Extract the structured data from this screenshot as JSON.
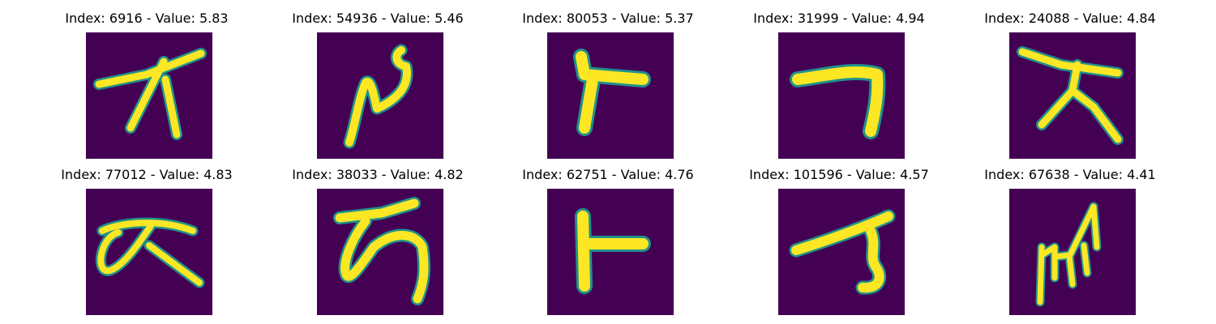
{
  "figure": {
    "panels": [
      {
        "title": "Index: 6916 - Value: 5.83",
        "glyph": "g1"
      },
      {
        "title": "Index: 54936 - Value: 5.46",
        "glyph": "g2"
      },
      {
        "title": "Index: 80053 - Value: 5.37",
        "glyph": "g3"
      },
      {
        "title": "Index: 31999 - Value: 4.94",
        "glyph": "g4"
      },
      {
        "title": "Index: 24088 - Value: 4.84",
        "glyph": "g5"
      },
      {
        "title": "Index: 77012 - Value: 4.83",
        "glyph": "g6"
      },
      {
        "title": "Index: 38033 - Value: 4.82",
        "glyph": "g7"
      },
      {
        "title": "Index: 62751 - Value: 4.76",
        "glyph": "g8"
      },
      {
        "title": "Index: 101596 - Value: 4.57",
        "glyph": "g9"
      },
      {
        "title": "Index: 67638 - Value: 4.41",
        "glyph": "g10"
      }
    ],
    "colors": {
      "background": "#440154",
      "stroke": "#fde725",
      "edge": "#21918c"
    }
  }
}
